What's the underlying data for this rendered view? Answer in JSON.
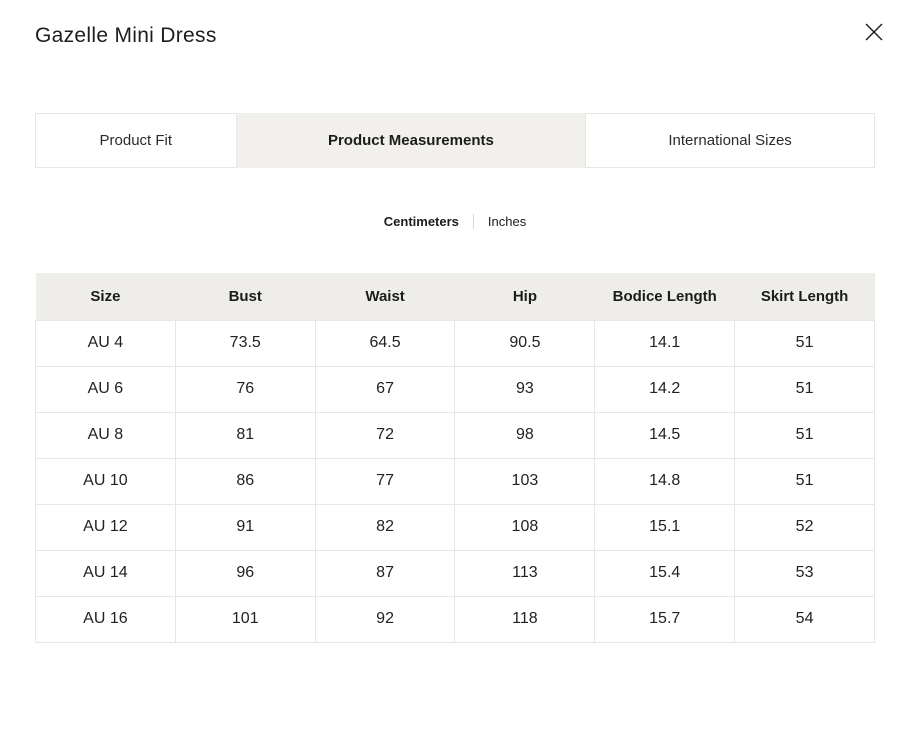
{
  "modal": {
    "title": "Gazelle Mini Dress",
    "close_glyph": "✕"
  },
  "tabs": [
    {
      "label": "Product Fit",
      "active": false
    },
    {
      "label": "Product Measurements",
      "active": true
    },
    {
      "label": "International Sizes",
      "active": false
    }
  ],
  "unit_toggle": {
    "options": [
      {
        "label": "Centimeters",
        "selected": true
      },
      {
        "label": "Inches",
        "selected": false
      }
    ]
  },
  "chart_data": {
    "type": "table",
    "columns": [
      "Size",
      "Bust",
      "Waist",
      "Hip",
      "Bodice Length",
      "Skirt Length"
    ],
    "rows": [
      [
        "AU 4",
        "73.5",
        "64.5",
        "90.5",
        "14.1",
        "51"
      ],
      [
        "AU 6",
        "76",
        "67",
        "93",
        "14.2",
        "51"
      ],
      [
        "AU 8",
        "81",
        "72",
        "98",
        "14.5",
        "51"
      ],
      [
        "AU 10",
        "86",
        "77",
        "103",
        "14.8",
        "51"
      ],
      [
        "AU 12",
        "91",
        "82",
        "108",
        "15.1",
        "52"
      ],
      [
        "AU 14",
        "96",
        "87",
        "113",
        "15.4",
        "53"
      ],
      [
        "AU 16",
        "101",
        "92",
        "118",
        "15.7",
        "54"
      ]
    ]
  },
  "colors": {
    "active_tab_bg": "#f1f0ec",
    "table_header_bg": "#eeede9",
    "border": "#e8e6e1",
    "text": "#1c1c1c"
  }
}
